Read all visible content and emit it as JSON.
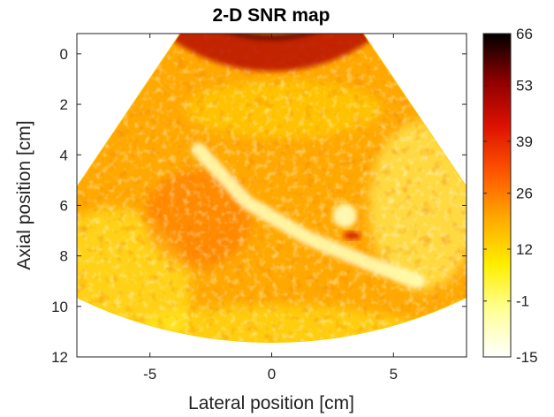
{
  "chart_data": {
    "type": "heatmap",
    "title": "2-D SNR map",
    "xlabel": "Lateral position [cm]",
    "ylabel": "Axial position [cm]",
    "xlim": [
      -8,
      8
    ],
    "ylim": [
      12,
      -0.8
    ],
    "x_ticks": [
      -5,
      0,
      5
    ],
    "x_tick_labels": [
      "-5",
      "0",
      "5"
    ],
    "y_ticks": [
      0,
      2,
      4,
      6,
      8,
      10,
      12
    ],
    "y_tick_labels": [
      "0",
      "2",
      "4",
      "6",
      "8",
      "10",
      "12"
    ],
    "colorbar": {
      "ticks": [
        66,
        53,
        39,
        26,
        12,
        -1,
        -15
      ],
      "tick_labels": [
        "66",
        "53",
        "39",
        "26",
        "12",
        "-1",
        "-15"
      ],
      "range": [
        -15,
        66
      ],
      "colormap": "hot-reversed",
      "stops": [
        "#ffffff",
        "#ffff99",
        "#ffee00",
        "#ffaa00",
        "#ff5500",
        "#dd1100",
        "#8b0000",
        "#000000"
      ]
    },
    "sector": {
      "apex_x_cm": 0,
      "apex_y_cm": -6.2,
      "inner_radius_cm": 5.5,
      "outer_radius_cm": 18.3,
      "half_angle_deg": 34
    },
    "features": [
      {
        "name": "vessel",
        "kind": "line",
        "points_cm": [
          [
            -3,
            3.8
          ],
          [
            -1,
            5.9
          ],
          [
            1.5,
            7.3
          ],
          [
            4.5,
            8.5
          ],
          [
            6,
            9
          ]
        ],
        "level": -10
      },
      {
        "name": "lesion",
        "kind": "spot",
        "center_cm": [
          3,
          6.4
        ],
        "radius_cm": 0.5,
        "level": -8
      },
      {
        "name": "near-field band",
        "kind": "band",
        "depth_cm": [
          -0.8,
          1.2
        ],
        "level": 48
      }
    ],
    "grid": false,
    "legend": "none"
  }
}
